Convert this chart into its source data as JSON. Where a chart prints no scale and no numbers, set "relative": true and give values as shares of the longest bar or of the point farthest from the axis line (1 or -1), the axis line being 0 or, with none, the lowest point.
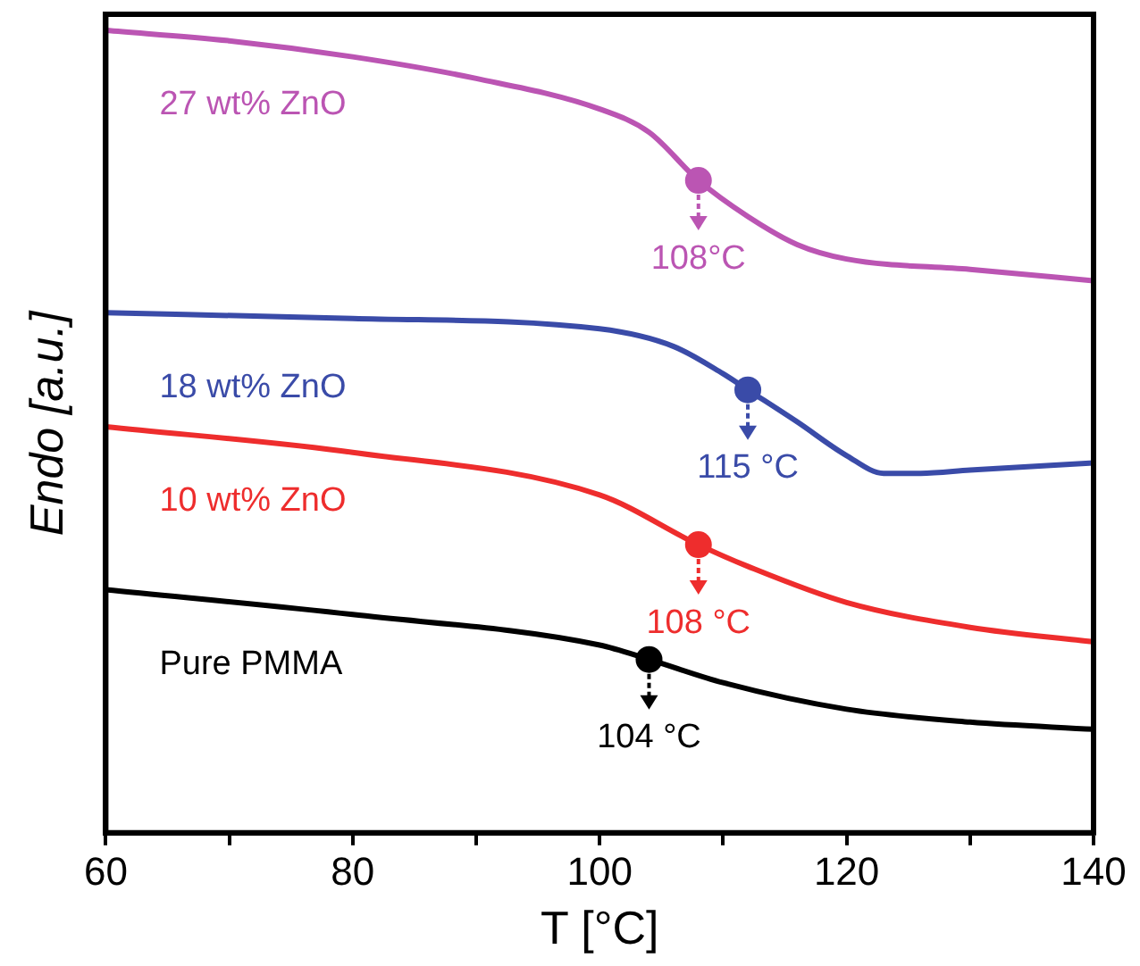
{
  "chart_data": {
    "type": "line",
    "relative": true,
    "xlabel": "T [°C]",
    "ylabel": "Endo [a.u.]",
    "xlim": [
      60,
      140
    ],
    "xticks": [
      60,
      {
        "value": 70,
        "label": null
      },
      80,
      {
        "value": 90,
        "label": null
      },
      100,
      {
        "value": 110,
        "label": null
      },
      120,
      {
        "value": 130,
        "label": null
      },
      140
    ],
    "tick_labels": "x",
    "grid": false,
    "legend": false,
    "marker": "none",
    "line_style": "solid",
    "series": [
      {
        "name": "27 wt% ZnO",
        "color": "#bb55b3",
        "x": [
          60,
          70,
          80,
          90,
          100,
          104,
          108,
          112,
          116,
          120,
          130,
          140
        ],
        "values": [
          1,
          0.987,
          0.967,
          0.94,
          0.902,
          0.873,
          0.813,
          0.768,
          0.733,
          0.715,
          0.702,
          0.688
        ]
      },
      {
        "name": "18 wt% ZnO",
        "color": "#3a4ba8",
        "x": [
          60,
          80,
          100,
          106,
          110,
          112,
          116,
          120,
          123,
          126,
          130,
          140
        ],
        "values": [
          0.648,
          0.641,
          0.628,
          0.606,
          0.572,
          0.552,
          0.512,
          0.47,
          0.448,
          0.448,
          0.452,
          0.461
        ]
      },
      {
        "name": "10 wt% ZnO",
        "color": "#ee2d2d",
        "x": [
          60,
          80,
          100,
          108,
          112,
          120,
          130,
          140
        ],
        "values": [
          0.506,
          0.474,
          0.421,
          0.359,
          0.332,
          0.287,
          0.256,
          0.238
        ]
      },
      {
        "name": "Pure PMMA",
        "color": "#000000",
        "x": [
          60,
          80,
          100,
          104,
          110,
          120,
          130,
          140
        ],
        "values": [
          0.303,
          0.272,
          0.234,
          0.216,
          0.187,
          0.154,
          0.138,
          0.129
        ]
      }
    ],
    "annotations": [
      {
        "text": "108°C",
        "x": 108,
        "y": 0.813
      },
      {
        "text": "115 °C",
        "x": 112,
        "y": 0.552
      },
      {
        "text": "108 °C",
        "x": 108,
        "y": 0.359
      },
      {
        "text": "104 °C",
        "x": 104,
        "y": 0.216
      }
    ]
  }
}
